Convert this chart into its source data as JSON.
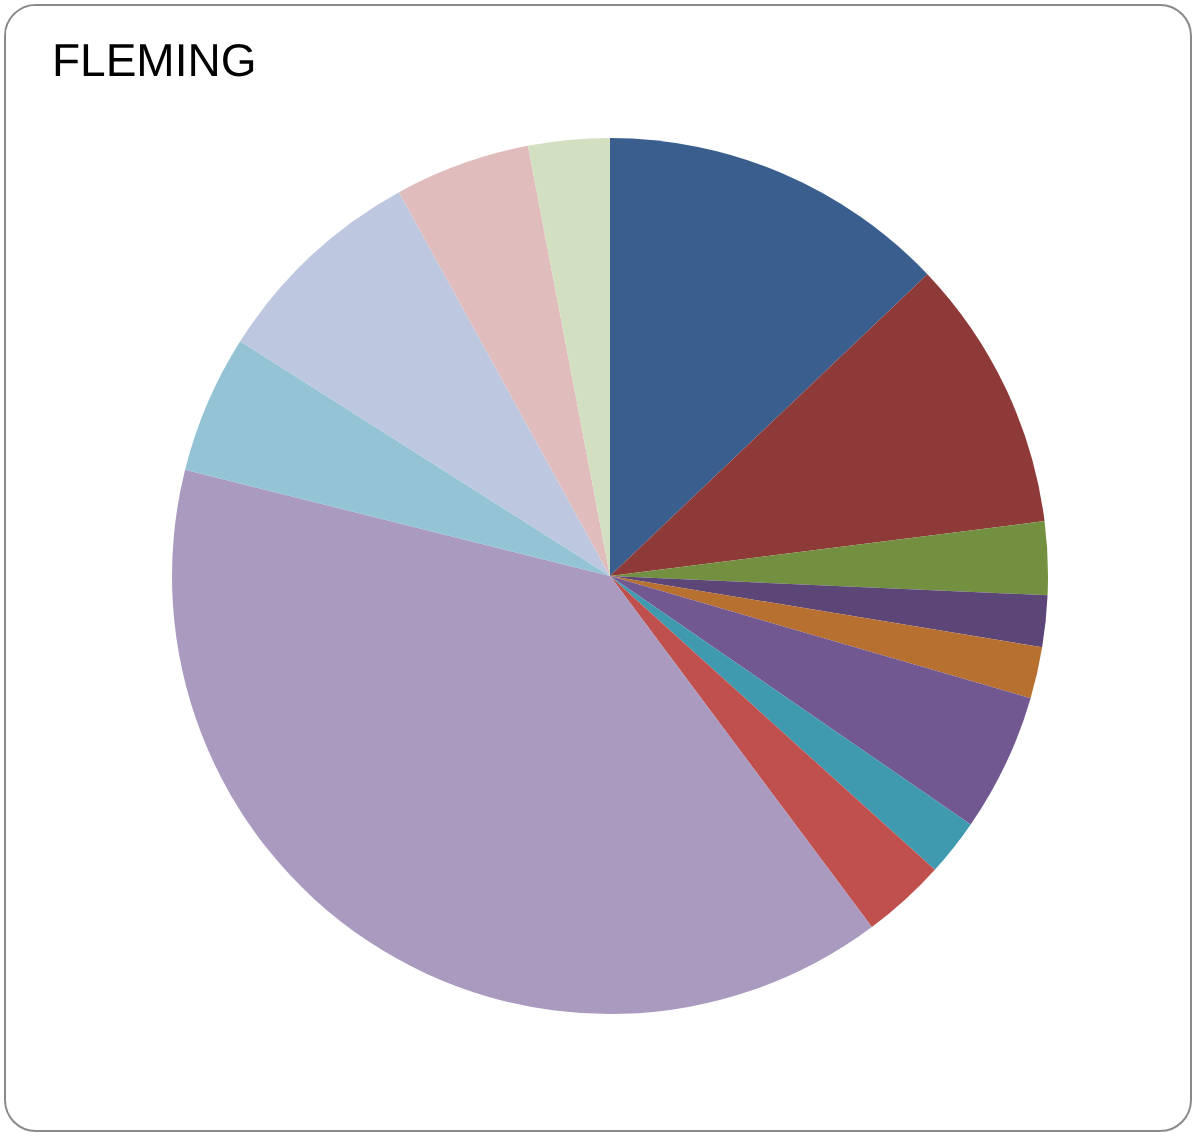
{
  "chart_data": {
    "type": "pie",
    "title": "FLEMING",
    "categories": [
      null,
      null,
      null,
      null,
      null,
      null,
      null,
      null,
      null,
      null,
      null,
      null,
      null
    ],
    "values": [
      12.9,
      10.1,
      2.7,
      1.9,
      1.9,
      5.1,
      2.1,
      3.1,
      39.1,
      5.1,
      8.0,
      5.0,
      3.0
    ],
    "colors": [
      "#3a5f8f",
      "#8e3a38",
      "#72903f",
      "#5b4677",
      "#b87030",
      "#715891",
      "#3f9ab0",
      "#c0504d",
      "#aa9abf",
      "#93c3d4",
      "#bdc8e0",
      "#e0bcbc",
      "#d2dfc0"
    ]
  }
}
